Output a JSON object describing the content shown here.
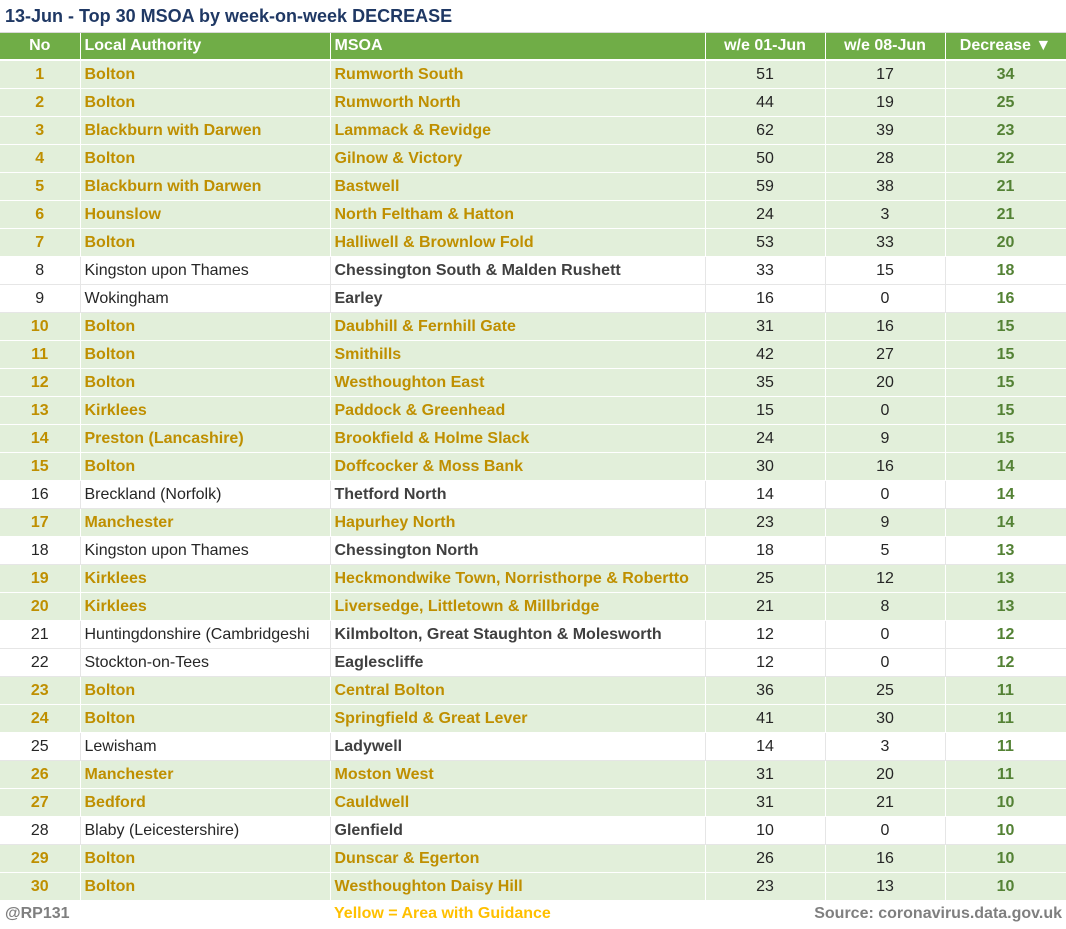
{
  "title": "13-Jun - Top 30 MSOA by week-on-week DECREASE",
  "columns": [
    "No",
    "Local Authority",
    "MSOA",
    "w/e 01-Jun",
    "w/e 08-Jun",
    "Decrease ▼"
  ],
  "rows": [
    {
      "no": "1",
      "la": "Bolton",
      "msoa": "Rumworth South",
      "w1": "51",
      "w2": "17",
      "dec": "34",
      "guidance": true
    },
    {
      "no": "2",
      "la": "Bolton",
      "msoa": "Rumworth North",
      "w1": "44",
      "w2": "19",
      "dec": "25",
      "guidance": true
    },
    {
      "no": "3",
      "la": "Blackburn with Darwen",
      "msoa": "Lammack & Revidge",
      "w1": "62",
      "w2": "39",
      "dec": "23",
      "guidance": true
    },
    {
      "no": "4",
      "la": "Bolton",
      "msoa": "Gilnow & Victory",
      "w1": "50",
      "w2": "28",
      "dec": "22",
      "guidance": true
    },
    {
      "no": "5",
      "la": "Blackburn with Darwen",
      "msoa": "Bastwell",
      "w1": "59",
      "w2": "38",
      "dec": "21",
      "guidance": true
    },
    {
      "no": "6",
      "la": "Hounslow",
      "msoa": "North Feltham & Hatton",
      "w1": "24",
      "w2": "3",
      "dec": "21",
      "guidance": true
    },
    {
      "no": "7",
      "la": "Bolton",
      "msoa": "Halliwell & Brownlow Fold",
      "w1": "53",
      "w2": "33",
      "dec": "20",
      "guidance": true
    },
    {
      "no": "8",
      "la": "Kingston upon Thames",
      "msoa": "Chessington South & Malden Rushett",
      "w1": "33",
      "w2": "15",
      "dec": "18",
      "guidance": false
    },
    {
      "no": "9",
      "la": "Wokingham",
      "msoa": "Earley",
      "w1": "16",
      "w2": "0",
      "dec": "16",
      "guidance": false
    },
    {
      "no": "10",
      "la": "Bolton",
      "msoa": "Daubhill & Fernhill Gate",
      "w1": "31",
      "w2": "16",
      "dec": "15",
      "guidance": true
    },
    {
      "no": "11",
      "la": "Bolton",
      "msoa": "Smithills",
      "w1": "42",
      "w2": "27",
      "dec": "15",
      "guidance": true
    },
    {
      "no": "12",
      "la": "Bolton",
      "msoa": "Westhoughton East",
      "w1": "35",
      "w2": "20",
      "dec": "15",
      "guidance": true
    },
    {
      "no": "13",
      "la": "Kirklees",
      "msoa": "Paddock & Greenhead",
      "w1": "15",
      "w2": "0",
      "dec": "15",
      "guidance": true
    },
    {
      "no": "14",
      "la": "Preston (Lancashire)",
      "msoa": "Brookfield & Holme Slack",
      "w1": "24",
      "w2": "9",
      "dec": "15",
      "guidance": true
    },
    {
      "no": "15",
      "la": "Bolton",
      "msoa": "Doffcocker & Moss Bank",
      "w1": "30",
      "w2": "16",
      "dec": "14",
      "guidance": true
    },
    {
      "no": "16",
      "la": "Breckland (Norfolk)",
      "msoa": "Thetford North",
      "w1": "14",
      "w2": "0",
      "dec": "14",
      "guidance": false
    },
    {
      "no": "17",
      "la": "Manchester",
      "msoa": "Hapurhey North",
      "w1": "23",
      "w2": "9",
      "dec": "14",
      "guidance": true
    },
    {
      "no": "18",
      "la": "Kingston upon Thames",
      "msoa": "Chessington North",
      "w1": "18",
      "w2": "5",
      "dec": "13",
      "guidance": false
    },
    {
      "no": "19",
      "la": "Kirklees",
      "msoa": "Heckmondwike Town, Norristhorpe & Robertto",
      "w1": "25",
      "w2": "12",
      "dec": "13",
      "guidance": true
    },
    {
      "no": "20",
      "la": "Kirklees",
      "msoa": "Liversedge, Littletown & Millbridge",
      "w1": "21",
      "w2": "8",
      "dec": "13",
      "guidance": true
    },
    {
      "no": "21",
      "la": "Huntingdonshire (Cambridgeshi",
      "msoa": "Kilmbolton, Great Staughton & Molesworth",
      "w1": "12",
      "w2": "0",
      "dec": "12",
      "guidance": false
    },
    {
      "no": "22",
      "la": "Stockton-on-Tees",
      "msoa": "Eaglescliffe",
      "w1": "12",
      "w2": "0",
      "dec": "12",
      "guidance": false
    },
    {
      "no": "23",
      "la": "Bolton",
      "msoa": "Central Bolton",
      "w1": "36",
      "w2": "25",
      "dec": "11",
      "guidance": true
    },
    {
      "no": "24",
      "la": "Bolton",
      "msoa": "Springfield & Great Lever",
      "w1": "41",
      "w2": "30",
      "dec": "11",
      "guidance": true
    },
    {
      "no": "25",
      "la": "Lewisham",
      "msoa": "Ladywell",
      "w1": "14",
      "w2": "3",
      "dec": "11",
      "guidance": false
    },
    {
      "no": "26",
      "la": "Manchester",
      "msoa": "Moston West",
      "w1": "31",
      "w2": "20",
      "dec": "11",
      "guidance": true
    },
    {
      "no": "27",
      "la": "Bedford",
      "msoa": "Cauldwell",
      "w1": "31",
      "w2": "21",
      "dec": "10",
      "guidance": true
    },
    {
      "no": "28",
      "la": "Blaby (Leicestershire)",
      "msoa": "Glenfield",
      "w1": "10",
      "w2": "0",
      "dec": "10",
      "guidance": false
    },
    {
      "no": "29",
      "la": "Bolton",
      "msoa": "Dunscar & Egerton",
      "w1": "26",
      "w2": "16",
      "dec": "10",
      "guidance": true
    },
    {
      "no": "30",
      "la": "Bolton",
      "msoa": "Westhoughton Daisy Hill",
      "w1": "23",
      "w2": "13",
      "dec": "10",
      "guidance": true
    }
  ],
  "footer": {
    "handle": "@RP131",
    "legend": "Yellow = Area with Guidance",
    "source": "Source: coronavirus.data.gov.uk"
  },
  "colors": {
    "header_bg": "#70ad47",
    "row_highlight_bg": "#e2efda",
    "guidance_text": "#bf8f00",
    "decrease_text": "#548235",
    "title_text": "#1f3864",
    "legend_text": "#ffc000"
  }
}
